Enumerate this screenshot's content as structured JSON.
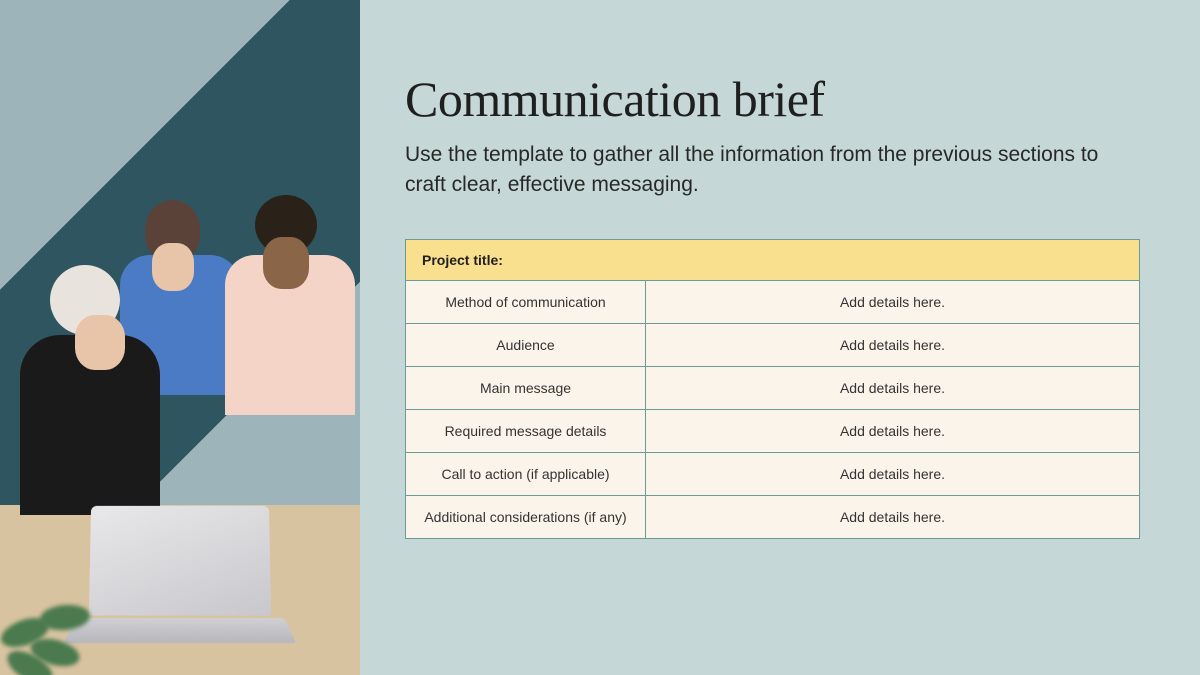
{
  "colors": {
    "page_bg": "#c6d7d7",
    "title_color": "#1f1f1f",
    "subtitle_color": "#282828",
    "table_header_bg": "#f9e08e",
    "table_header_text": "#1f1f1f",
    "table_cell_bg": "#fbf4ea",
    "table_cell_text": "#333333",
    "table_border": "#6b9b95"
  },
  "typography": {
    "title_fontsize": 50,
    "subtitle_fontsize": 21,
    "header_fontsize": 14,
    "cell_fontsize": 14
  },
  "content": {
    "title": "Communication brief",
    "subtitle": "Use the template to gather all the information from the previous sections to craft clear, effective messaging.",
    "table": {
      "header": "Project title:",
      "placeholder": "Add details here.",
      "rows": [
        {
          "label": "Method of communication",
          "value": "Add details here."
        },
        {
          "label": "Audience",
          "value": "Add details here."
        },
        {
          "label": "Main message",
          "value": "Add details here."
        },
        {
          "label": "Required message details",
          "value": "Add details here."
        },
        {
          "label": "Call to action (if applicable)",
          "value": "Add details here."
        },
        {
          "label": "Additional considerations (if any)",
          "value": "Add details here."
        }
      ]
    }
  }
}
